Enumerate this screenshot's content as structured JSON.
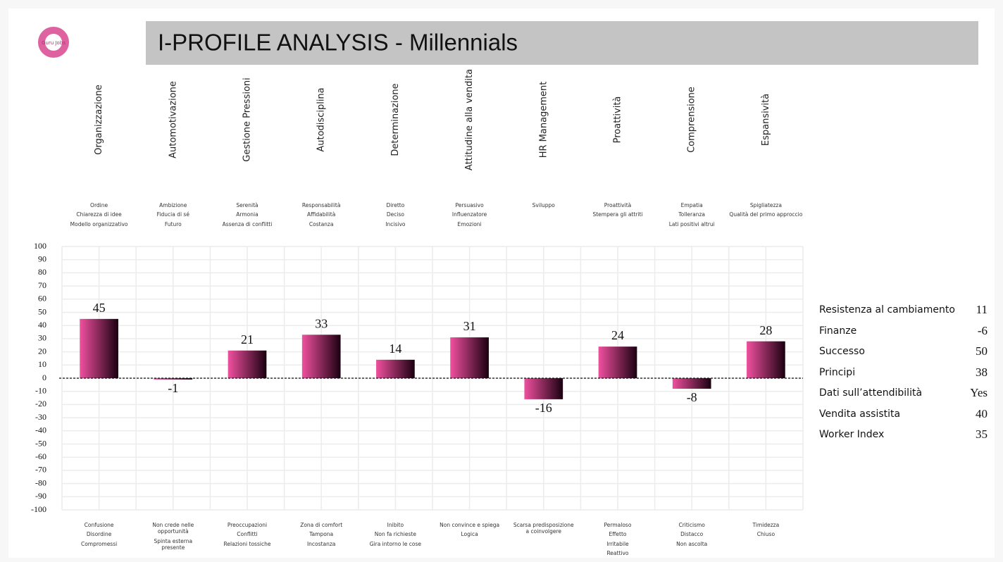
{
  "logo": "Guru Jobs",
  "chart_data": {
    "type": "bar",
    "title": "I-PROFILE ANALYSIS - Millennials",
    "categories": [
      "Organizzazione",
      "Automotivazione",
      "Gestione Pressioni",
      "Autodisciplina",
      "Determinazione",
      "Attitudine alla vendita",
      "HR Management",
      "Proattività",
      "Comprensione",
      "Espansività"
    ],
    "values": [
      45,
      -1,
      21,
      33,
      14,
      31,
      -16,
      24,
      -8,
      28
    ],
    "positive_traits": [
      [
        "Ordine",
        "Chiarezza di idee",
        "Modello organizzativo"
      ],
      [
        "Ambizione",
        "Fiducia di sé",
        "Futuro"
      ],
      [
        "Serenità",
        "Armonia",
        "Assenza di conflitti"
      ],
      [
        "Responsabilità",
        "Affidabilità",
        "Costanza"
      ],
      [
        "Diretto",
        "Deciso",
        "Incisivo"
      ],
      [
        "Persuasivo",
        "Influenzatore",
        "Emozioni"
      ],
      [
        "Sviluppo"
      ],
      [
        "Proattività",
        "Stempera gli attriti"
      ],
      [
        "Empatia",
        "Tolleranza",
        "Lati positivi altrui"
      ],
      [
        "Spigliatezza",
        "Qualità del primo approccio"
      ]
    ],
    "negative_traits": [
      [
        "Confusione",
        "Disordine",
        "Compromessi"
      ],
      [
        "Non crede nelle opportunità",
        "Spinta esterna presente"
      ],
      [
        "Preoccupazioni",
        "Conflitti",
        "Relazioni tossiche"
      ],
      [
        "Zona di comfort",
        "Tampona",
        "Incostanza"
      ],
      [
        "Inibito",
        "Non fa richieste",
        "Gira intorno le cose"
      ],
      [
        "Non convince e spiega",
        "Logica"
      ],
      [
        "Scarsa predisposizione a coinvolgere"
      ],
      [
        "Permaloso",
        "Effetto",
        "Irritabile",
        "Reattivo"
      ],
      [
        "Criticismo",
        "Distacco",
        "Non ascolta"
      ],
      [
        "Timidezza",
        "Chiuso"
      ]
    ],
    "ylim": [
      -100,
      100
    ],
    "yticks": [
      -100,
      -90,
      -80,
      -70,
      -60,
      -50,
      -40,
      -30,
      -20,
      -10,
      0,
      10,
      20,
      30,
      40,
      50,
      60,
      70,
      80,
      90,
      100
    ],
    "grid": true,
    "color_start": "#f0509f",
    "color_end": "#1a0010",
    "side_metrics": [
      {
        "label": "Resistenza al cambiamento",
        "value": 11
      },
      {
        "label": "Finanze",
        "value": -6
      },
      {
        "label": "Successo",
        "value": 50
      },
      {
        "label": "Principi",
        "value": 38
      },
      {
        "label": "Dati sull’attendibilità",
        "value": "Yes"
      },
      {
        "label": "Vendita assistita",
        "value": 40
      },
      {
        "label": "Worker Index",
        "value": 35
      }
    ]
  }
}
